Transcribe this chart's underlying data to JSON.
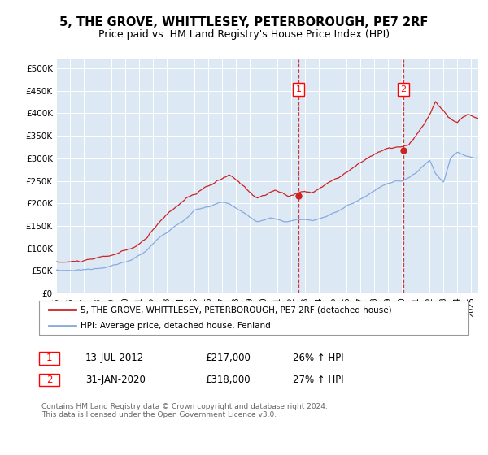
{
  "title": "5, THE GROVE, WHITTLESEY, PETERBOROUGH, PE7 2RF",
  "subtitle": "Price paid vs. HM Land Registry's House Price Index (HPI)",
  "ylabel_ticks": [
    "£0",
    "£50K",
    "£100K",
    "£150K",
    "£200K",
    "£250K",
    "£300K",
    "£350K",
    "£400K",
    "£450K",
    "£500K"
  ],
  "ytick_vals": [
    0,
    50000,
    100000,
    150000,
    200000,
    250000,
    300000,
    350000,
    400000,
    450000,
    500000
  ],
  "ylim": [
    0,
    520000
  ],
  "xlim_start": 1995.0,
  "xlim_end": 2025.5,
  "background_color": "#dde8f5",
  "red_line_color": "#cc2222",
  "blue_line_color": "#88aadd",
  "marker1_x": 2012.53,
  "marker1_y": 217000,
  "marker2_x": 2020.08,
  "marker2_y": 318000,
  "legend_label1": "5, THE GROVE, WHITTLESEY, PETERBOROUGH, PE7 2RF (detached house)",
  "legend_label2": "HPI: Average price, detached house, Fenland",
  "annotation1_date": "13-JUL-2012",
  "annotation1_price": "£217,000",
  "annotation1_hpi": "26% ↑ HPI",
  "annotation2_date": "31-JAN-2020",
  "annotation2_price": "£318,000",
  "annotation2_hpi": "27% ↑ HPI",
  "footer": "Contains HM Land Registry data © Crown copyright and database right 2024.\nThis data is licensed under the Open Government Licence v3.0."
}
